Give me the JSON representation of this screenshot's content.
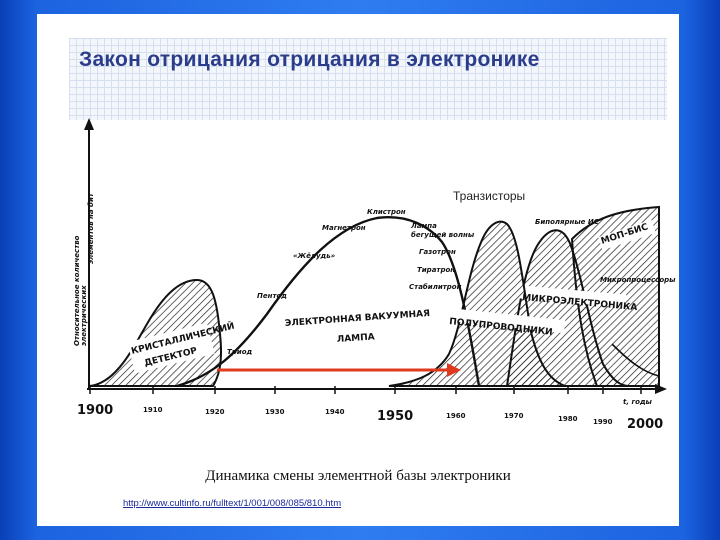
{
  "slide": {
    "title": "Закон отрицания отрицания в электронике",
    "caption": "Динамика смены элементной базы электроники",
    "source_link": "http://www.cultinfo.ru/fulltext/1/001/008/085/810.htm"
  },
  "diagram": {
    "y_axis_label_line1": "Относительное количество",
    "y_axis_label_line2": "электрических",
    "y_axis_label_line3": "элементов на бит",
    "axis_unit": "t, годы",
    "years": [
      "1900",
      "1910",
      "1920",
      "1930",
      "1940",
      "1950",
      "1960",
      "1970",
      "1980",
      "1990",
      "2000"
    ],
    "regions": {
      "crystal_detector_line1": "КРИСТАЛЛИЧЕСКИЙ",
      "crystal_detector_line2": "ДЕТЕКТОР",
      "vacuum_lamp_line1": "ЭЛЕКТРОННАЯ ВАКУУМНАЯ",
      "vacuum_lamp_line2": "ЛАМПА",
      "semiconductors": "ПОЛУПРОВОДНИКИ",
      "microelectronics": "МИКРОЭЛЕКТРОНИКА",
      "mop_bis": "МОП-БИС"
    },
    "labels": {
      "transistors": "Транзисторы",
      "triode": "Триод",
      "pentode": "Пентод",
      "acorn": "«Жёлудь»",
      "magnetron": "Магнетрон",
      "klystron": "Клистрон",
      "twt_line1": "Лампа",
      "twt_line2": "бегущей волны",
      "gasotron": "Газотрон",
      "thyratron": "Тиратрон",
      "stabilitron": "Стабилитрон",
      "bipolar_ic": "Биполярные ИС",
      "microprocessors": "Микропроцессоры"
    },
    "colors": {
      "arrow": "#e03a1e",
      "ink": "#111111",
      "title": "#2b3d8a",
      "background": "#2f7cf0"
    }
  }
}
